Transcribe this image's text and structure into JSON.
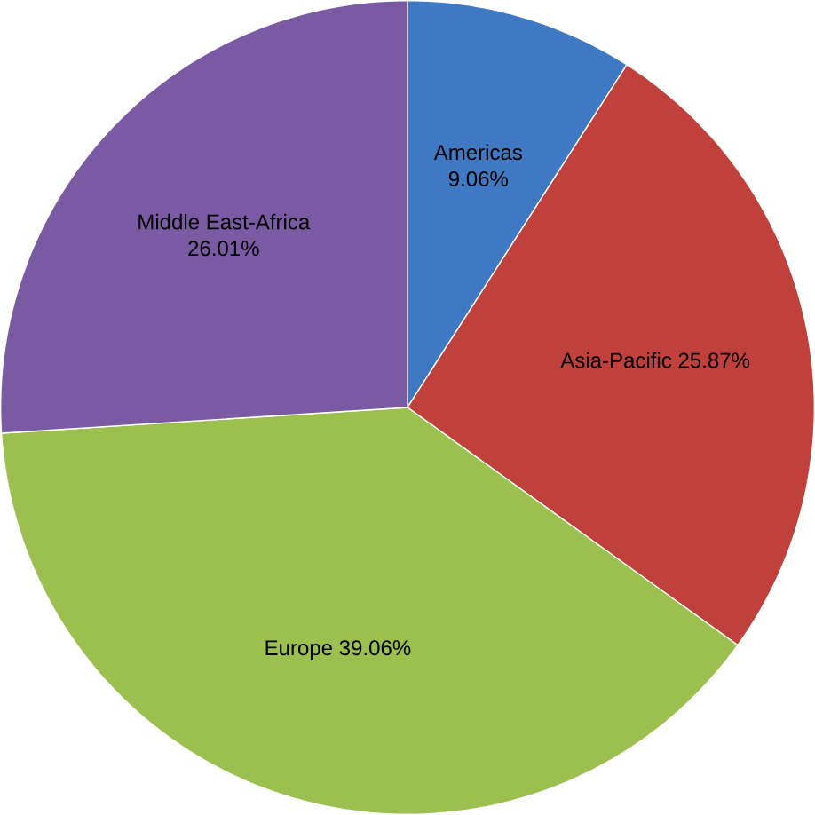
{
  "chart_data": {
    "type": "pie",
    "categories": [
      "Americas",
      "Asia-Pacific",
      "Europe",
      "Middle East-Africa"
    ],
    "values": [
      9.06,
      25.87,
      39.06,
      26.01
    ],
    "value_labels": [
      "9.06%",
      "25.87%",
      "39.06%",
      "26.01%"
    ],
    "colors": [
      "#3f78c3",
      "#c0403b",
      "#9bc04f",
      "#7a5aa3"
    ]
  }
}
